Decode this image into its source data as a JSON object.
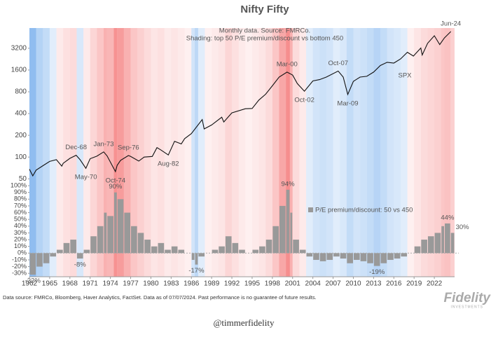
{
  "chart_data": [
    {
      "type": "line",
      "title": "Nifty Fifty",
      "subtitle": [
        "Monthly data.  Source: FMRCo.",
        "Shading: top 50 P/E premium/discount vs bottom 450"
      ],
      "log_scale": true,
      "x": [
        1962.0,
        1962.5,
        1963.0,
        1964.0,
        1965.0,
        1966.0,
        1966.8,
        1967.0,
        1968.0,
        1968.92,
        1969.5,
        1970.37,
        1971.0,
        1972.0,
        1973.0,
        1973.5,
        1974.75,
        1975.0,
        1975.5,
        1976.67,
        1977.0,
        1978.2,
        1979.0,
        1980.2,
        1980.9,
        1981.5,
        1982.58,
        1983.5,
        1984.5,
        1985.0,
        1986.0,
        1987.6,
        1987.9,
        1989.0,
        1990.5,
        1990.8,
        1992.0,
        1994.0,
        1995.0,
        1996.0,
        1997.0,
        1998.0,
        1999.0,
        2000.17,
        2001.0,
        2001.7,
        2002.75,
        2004.0,
        2005.0,
        2006.0,
        2007.75,
        2008.5,
        2009.17,
        2010.0,
        2011.0,
        2012.0,
        2013.0,
        2014.0,
        2015.0,
        2016.0,
        2017.0,
        2018.0,
        2018.9,
        2020.0,
        2020.2,
        2021.0,
        2022.0,
        2022.8,
        2023.5,
        2024.45
      ],
      "series": [
        {
          "name": "SPX",
          "color": "#111111",
          "values": [
            68,
            55,
            66,
            76,
            87,
            92,
            75,
            82,
            96,
            106,
            92,
            70,
            95,
            103,
            118,
            104,
            63,
            77,
            90,
            105,
            102,
            88,
            100,
            102,
            135,
            125,
            107,
            165,
            152,
            180,
            211,
            330,
            245,
            278,
            356,
            306,
            409,
            466,
            470,
            615,
            740,
            970,
            1280,
            1500,
            1360,
            1040,
            815,
            1130,
            1180,
            1280,
            1550,
            1280,
            735,
            1115,
            1280,
            1310,
            1500,
            1850,
            2050,
            2000,
            2280,
            2820,
            2500,
            3230,
            2585,
            3750,
            4770,
            3600,
            4450,
            5460
          ],
          "point_labels": [
            null,
            null,
            null,
            null,
            null,
            null,
            null,
            null,
            null,
            "Dec-68",
            null,
            "May-70",
            null,
            null,
            "Jan-73",
            null,
            "Oct-74",
            null,
            null,
            "Sep-76",
            null,
            null,
            null,
            null,
            null,
            null,
            "Aug-82",
            null,
            null,
            null,
            null,
            null,
            null,
            null,
            null,
            null,
            null,
            null,
            null,
            null,
            null,
            null,
            null,
            "Mar-00",
            null,
            null,
            "Oct-02",
            null,
            null,
            null,
            "Oct-07",
            null,
            "Mar-09",
            null,
            null,
            null,
            null,
            null,
            null,
            null,
            null,
            null,
            null,
            null,
            null,
            null,
            null,
            null,
            null,
            "Jun-24"
          ]
        }
      ],
      "xlim": [
        1962,
        2025
      ],
      "ylim": [
        43,
        6100
      ],
      "yticks": [
        50,
        100,
        200,
        400,
        800,
        1600,
        3200
      ]
    },
    {
      "type": "bar",
      "x": [
        1962,
        1963,
        1964,
        1965,
        1966,
        1967,
        1968,
        1969,
        1970,
        1971,
        1972,
        1973,
        1973.5,
        1974.5,
        1975,
        1976,
        1977,
        1978,
        1979,
        1980,
        1981,
        1982,
        1983,
        1984,
        1985,
        1986,
        1986.5,
        1987,
        1988,
        1989,
        1990,
        1991,
        1992,
        1993,
        1994,
        1995,
        1996,
        1997,
        1998,
        1999,
        2000,
        2000.6,
        2001,
        2002,
        2003,
        2004,
        2005,
        2006,
        2007,
        2008,
        2009,
        2010,
        2011,
        2012,
        2013,
        2014,
        2015,
        2016,
        2017,
        2018,
        2019,
        2020,
        2021,
        2022,
        2023,
        2023.5,
        2024.4
      ],
      "series": [
        {
          "name": "P/E premium/discount: 50 vs 450",
          "color": "#999999",
          "values": [
            -32,
            -20,
            -15,
            -5,
            5,
            15,
            20,
            -8,
            5,
            25,
            40,
            60,
            55,
            90,
            80,
            60,
            40,
            30,
            20,
            10,
            15,
            5,
            10,
            5,
            0,
            -10,
            -17,
            -5,
            0,
            5,
            10,
            25,
            15,
            5,
            0,
            5,
            10,
            20,
            40,
            70,
            94,
            60,
            20,
            5,
            -5,
            -10,
            -12,
            -10,
            -5,
            -8,
            -15,
            -10,
            -12,
            -15,
            -19,
            -15,
            -10,
            -8,
            -5,
            0,
            10,
            20,
            25,
            30,
            40,
            44,
            30
          ],
          "value_labels": [
            "-32%",
            null,
            null,
            null,
            null,
            null,
            null,
            "-8%",
            null,
            null,
            null,
            null,
            null,
            "90%",
            null,
            null,
            null,
            null,
            null,
            null,
            null,
            null,
            null,
            null,
            null,
            null,
            "-17%",
            null,
            null,
            null,
            null,
            null,
            null,
            null,
            null,
            null,
            null,
            null,
            null,
            null,
            "94%",
            null,
            null,
            null,
            null,
            null,
            null,
            null,
            null,
            null,
            null,
            null,
            null,
            null,
            "-19%",
            null,
            null,
            null,
            null,
            null,
            null,
            null,
            null,
            null,
            null,
            "44%",
            "30%"
          ]
        }
      ],
      "shading": {
        "positive_color": "#f03c3c",
        "negative_color": "#3f8ee6"
      },
      "xlim": [
        1962,
        2025
      ],
      "ylim": [
        -35,
        100
      ],
      "xticks": [
        1962,
        1965,
        1968,
        1971,
        1974,
        1977,
        1980,
        1983,
        1986,
        1989,
        1992,
        1995,
        1998,
        2001,
        2004,
        2007,
        2010,
        2013,
        2016,
        2019,
        2022
      ],
      "yticks": [
        {
          "value": 100,
          "label": "100%"
        },
        {
          "value": 90,
          "label": "90%"
        },
        {
          "value": 80,
          "label": "80%"
        },
        {
          "value": 70,
          "label": "70%"
        },
        {
          "value": 60,
          "label": "60%"
        },
        {
          "value": 50,
          "label": "50%"
        },
        {
          "value": 40,
          "label": "40%"
        },
        {
          "value": 30,
          "label": "30%"
        },
        {
          "value": 20,
          "label": "20%"
        },
        {
          "value": 10,
          "label": "10%"
        },
        {
          "value": 0,
          "label": "0%"
        },
        {
          "value": -10,
          "label": "-10%"
        },
        {
          "value": -20,
          "label": "-20%"
        },
        {
          "value": -30,
          "label": "-30%"
        }
      ]
    }
  ],
  "footer": {
    "source": "Data source: FMRCo, Bloomberg, Haver Analytics, FactSet. Data as of 07/07/2024. Past performance is no guarantee of future results.",
    "logo": "Fidelity",
    "logo_sub": "INVESTMENTS",
    "handle": "@timmerfidelity"
  }
}
